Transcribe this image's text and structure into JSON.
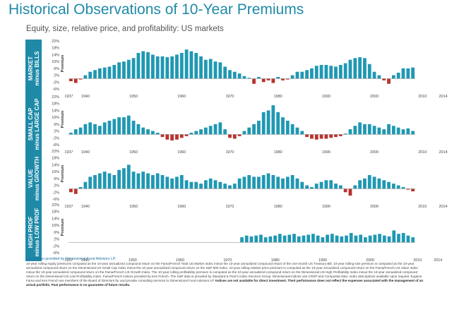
{
  "title": "Historical Observations of 10-Year Premiums",
  "subtitle": "Equity, size, relative price, and profitability: US markets",
  "footer": {
    "provider": "Information provided by Dimensional Fund Advisors LP.",
    "body": "10-year rolling equity premiums computed as the 10-year annualized compound return on the Fama/French Total US Market Index minus the 10-year annualized compound return of the one-month US Treasury Bill. 10-year rolling size premium is computed as the 10-year annualized compound return on the Dimensional US Small Cap Index minus the 10-year annualized compound return on the S&P 500 Index. 10-year rolling relative price premium is computed as the 10-year annualized compound return on the Fama/French US Value Index minus the 10-year annualized compound return on the Fama/French US Growth Index. The 10-year rolling profitability premium is computed as the 10-year annualized compound return on the Dimensional US High Profitability Index minus the 10-year annualized compound return on the Dimensional US Low Profitability Index. Fama/French indices provided by Ken French. The S&P data is provided by Standard & Poor's Index Services Group. Dimensional indices use CRSP and Compustat data. Index descriptions available upon request. Eugene Fama and Ken French are members of the Board of Directors for and provide consulting services to Dimensional Fund Advisors LP.",
    "bold": "Indices are not available for direct investment. Their performance does not reflect the expenses associated with the management of an actual portfolio. Past performance is no guarantee of future results."
  },
  "colors": {
    "positive": "#1f98b3",
    "negative": "#b8322c",
    "label_bg": "#1f8aa8",
    "title": "#1f8aa8"
  },
  "chart_data": [
    {
      "type": "bar",
      "label_line1": "MARKET",
      "label_line2": "minus BILLS",
      "ylabel": "Premium",
      "yticks": [
        "22%",
        "18%",
        "14%",
        "10%",
        "6%",
        "2%",
        "-2%",
        "-6%"
      ],
      "ylim": [
        -6,
        22
      ],
      "xticks": [
        "1937",
        "1940",
        "1950",
        "1960",
        "1970",
        "1980",
        "1990",
        "2000",
        "2010",
        "2014"
      ],
      "first_year": 1937,
      "values": [
        -1.5,
        -2.5,
        -0.5,
        2,
        4,
        5,
        6,
        6.5,
        7,
        8,
        9.5,
        10,
        11,
        12,
        15,
        16,
        15.5,
        14,
        13,
        13,
        12.5,
        13,
        14,
        15,
        17,
        16,
        15,
        13,
        11,
        11.5,
        10,
        9.5,
        7,
        5,
        4,
        3,
        1.5,
        0.5,
        -3,
        1,
        -2,
        -1,
        -2.5,
        1,
        -1,
        -0.5,
        2,
        4,
        4,
        5,
        6,
        7.5,
        8,
        8,
        7.5,
        7,
        8,
        9,
        11,
        12,
        12.5,
        12,
        8.5,
        4,
        2,
        -1,
        -3,
        2,
        3.5,
        6,
        6,
        6.5
      ]
    },
    {
      "type": "bar",
      "label_line1": "SMALL CAP",
      "label_line2": "minus LARGE CAP",
      "ylabel": "Premium",
      "yticks": [
        "22%",
        "18%",
        "14%",
        "10%",
        "6%",
        "2%",
        "-2%",
        "-6%"
      ],
      "ylim": [
        -6,
        22
      ],
      "xticks": [
        "1937",
        "1940",
        "1950",
        "1960",
        "1970",
        "1980",
        "1990",
        "2000",
        "2010",
        "2014"
      ],
      "first_year": 1937,
      "values": [
        1,
        3,
        4,
        6,
        7,
        6,
        5,
        7,
        8,
        9,
        10,
        10,
        11,
        8,
        6,
        4,
        3,
        2,
        1,
        -1.5,
        -3,
        -3.5,
        -3,
        -2,
        -1,
        1,
        2,
        3,
        4,
        5,
        6,
        7,
        3,
        -2,
        -2.5,
        -1,
        2,
        4,
        6,
        8,
        13,
        14,
        17,
        13,
        10,
        8,
        6,
        4,
        2,
        -1.5,
        -2.5,
        -3,
        -2.5,
        -2.5,
        -2,
        -1.5,
        -1,
        0.5,
        3,
        5,
        7,
        6,
        6,
        5,
        4,
        3,
        6,
        5,
        4,
        3,
        3.5,
        2
      ]
    },
    {
      "type": "bar",
      "label_line1": "VALUE",
      "label_line2": "minus GROWTH",
      "ylabel": "Premium",
      "yticks": [
        "22%",
        "18%",
        "14%",
        "10%",
        "6%",
        "2%",
        "-2%",
        "-6%"
      ],
      "ylim": [
        -6,
        22
      ],
      "xticks": [
        "1937",
        "1940",
        "1950",
        "1960",
        "1970",
        "1980",
        "1990",
        "2000",
        "2010",
        "2014"
      ],
      "first_year": 1937,
      "values": [
        -2,
        -3,
        1,
        4,
        7,
        8,
        9,
        10,
        9,
        8,
        11,
        12,
        14,
        10,
        9,
        10,
        9,
        8,
        9,
        8,
        7,
        6,
        7,
        8,
        5,
        4,
        4,
        3,
        5,
        6,
        5,
        4,
        3,
        2,
        3,
        6,
        7,
        8,
        7,
        7,
        8,
        9,
        8,
        7,
        6,
        7,
        8,
        6,
        4,
        2,
        1,
        3,
        4,
        5,
        5,
        3,
        2,
        -2,
        -4,
        2,
        5,
        6,
        8,
        7,
        6,
        5,
        4,
        3,
        2,
        1,
        -0.5,
        -1.5
      ]
    },
    {
      "type": "bar",
      "label_line1": "HIGH PROF",
      "label_line2": "minus LOW PROF",
      "ylabel": "Premium",
      "yticks": [
        "22%",
        "18%",
        "14%",
        "10%",
        "6%",
        "2%",
        "-2%",
        "-6%"
      ],
      "ylim": [
        -6,
        22
      ],
      "xticks": [
        "1937",
        "1940",
        "1950",
        "1960",
        "1970",
        "1980",
        "1990",
        "2000",
        "2010",
        "2014"
      ],
      "first_year": 1937,
      "values": [
        null,
        null,
        null,
        null,
        null,
        null,
        null,
        null,
        null,
        null,
        null,
        null,
        null,
        null,
        null,
        null,
        null,
        null,
        null,
        null,
        null,
        null,
        null,
        null,
        null,
        null,
        null,
        null,
        null,
        null,
        null,
        null,
        null,
        null,
        null,
        null,
        3,
        4,
        3.5,
        4,
        4.5,
        3,
        3.5,
        4,
        5,
        4,
        4.5,
        5,
        3.5,
        4,
        4.5,
        5,
        4,
        3,
        4.5,
        5,
        4,
        3.5,
        4,
        5.5,
        4,
        4.5,
        3,
        4,
        4.5,
        5,
        4,
        3.5,
        7,
        5,
        5.5,
        4,
        3
      ]
    }
  ]
}
